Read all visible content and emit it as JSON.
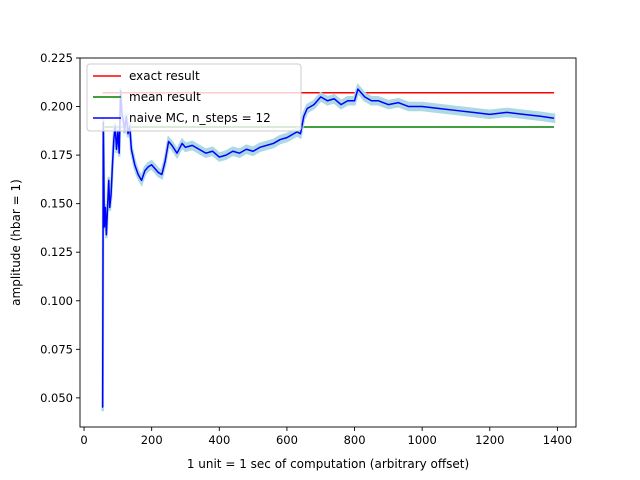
{
  "chart_data": {
    "type": "line",
    "title": "",
    "xlabel": "1 unit = 1 sec of computation (arbitrary offset)",
    "ylabel": "amplitude (hbar = 1)",
    "xlim": [
      -12,
      1455
    ],
    "ylim": [
      0.035,
      0.225
    ],
    "xticks": [
      0,
      200,
      400,
      600,
      800,
      1000,
      1200,
      1400
    ],
    "yticks": [
      0.05,
      0.075,
      0.1,
      0.125,
      0.15,
      0.175,
      0.2,
      0.225
    ],
    "xtick_labels": [
      "0",
      "200",
      "400",
      "600",
      "800",
      "1000",
      "1200",
      "1400"
    ],
    "ytick_labels": [
      "0.050",
      "0.075",
      "0.100",
      "0.125",
      "0.150",
      "0.175",
      "0.200",
      "0.225"
    ],
    "grid": false,
    "legend_position": "top-left",
    "series": [
      {
        "name": "exact result",
        "color": "#ff0000",
        "x": [
          55,
          1390
        ],
        "y": [
          0.2071,
          0.2071
        ]
      },
      {
        "name": "mean result",
        "color": "#008000",
        "x": [
          55,
          1390
        ],
        "y": [
          0.1895,
          0.1895
        ]
      },
      {
        "name": "naive MC, n_steps = 12",
        "color": "#0000ff",
        "band_color": "#add8e6",
        "band_halfwidth": 0.0018,
        "x": [
          55,
          57,
          60,
          63,
          66,
          70,
          73,
          76,
          80,
          84,
          88,
          92,
          96,
          100,
          104,
          108,
          112,
          116,
          120,
          125,
          130,
          135,
          140,
          150,
          160,
          170,
          180,
          190,
          200,
          210,
          220,
          230,
          240,
          250,
          260,
          275,
          290,
          300,
          320,
          340,
          360,
          380,
          400,
          420,
          440,
          460,
          480,
          500,
          520,
          540,
          560,
          580,
          600,
          610,
          620,
          630,
          640,
          650,
          660,
          680,
          700,
          720,
          740,
          760,
          780,
          800,
          810,
          820,
          830,
          850,
          870,
          900,
          930,
          960,
          1000,
          1050,
          1100,
          1150,
          1200,
          1250,
          1300,
          1350,
          1390
        ],
        "y": [
          0.045,
          0.192,
          0.138,
          0.148,
          0.134,
          0.15,
          0.162,
          0.148,
          0.155,
          0.17,
          0.183,
          0.19,
          0.178,
          0.187,
          0.176,
          0.208,
          0.196,
          0.193,
          0.188,
          0.195,
          0.186,
          0.19,
          0.178,
          0.17,
          0.165,
          0.162,
          0.167,
          0.169,
          0.17,
          0.168,
          0.166,
          0.165,
          0.172,
          0.182,
          0.18,
          0.176,
          0.181,
          0.179,
          0.18,
          0.178,
          0.176,
          0.177,
          0.174,
          0.175,
          0.177,
          0.176,
          0.178,
          0.177,
          0.179,
          0.18,
          0.181,
          0.183,
          0.184,
          0.185,
          0.186,
          0.187,
          0.186,
          0.195,
          0.199,
          0.201,
          0.205,
          0.203,
          0.204,
          0.201,
          0.203,
          0.203,
          0.209,
          0.207,
          0.205,
          0.203,
          0.203,
          0.201,
          0.202,
          0.2,
          0.2,
          0.199,
          0.198,
          0.197,
          0.196,
          0.197,
          0.196,
          0.195,
          0.194
        ]
      }
    ]
  }
}
